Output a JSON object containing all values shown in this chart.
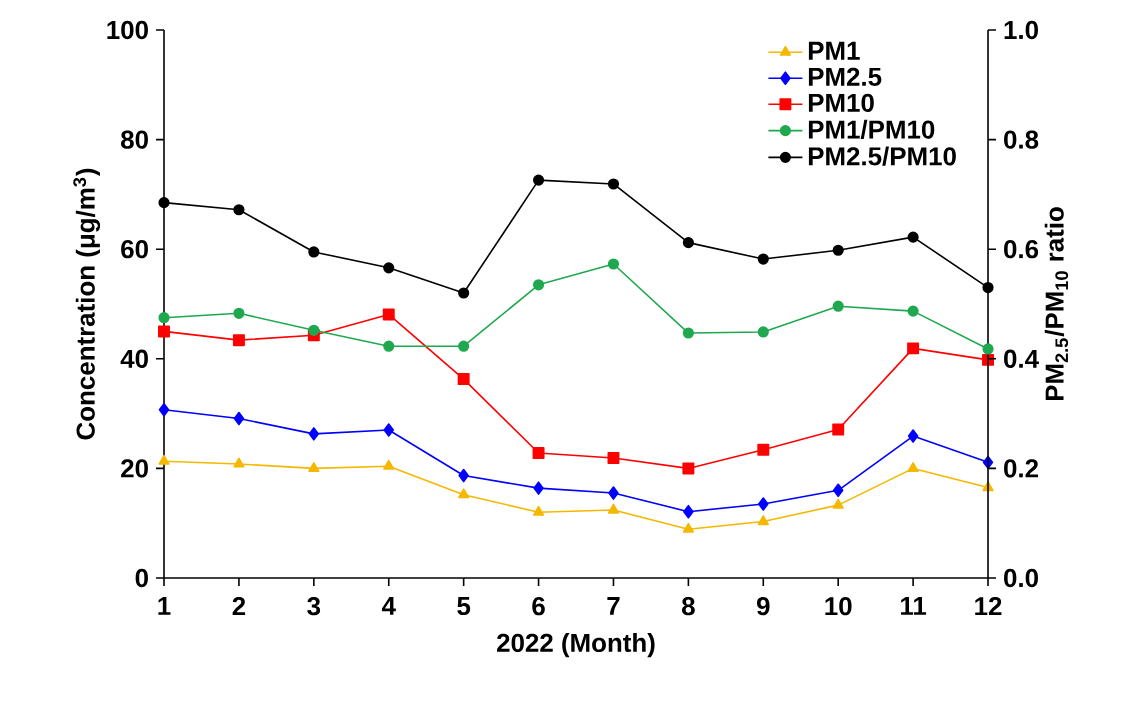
{
  "chart_data": {
    "type": "line",
    "xlabel": "2022 (Month)",
    "ylabel": "Concentration (μg/m$^{3}$)",
    "y2label": "PM$_{2.5}$/PM$_{10}$ ratio",
    "x": [
      1,
      2,
      3,
      4,
      5,
      6,
      7,
      8,
      9,
      10,
      11,
      12
    ],
    "xlim": [
      1,
      12
    ],
    "xticks": [
      1,
      2,
      3,
      4,
      5,
      6,
      7,
      8,
      9,
      10,
      11,
      12
    ],
    "ylim": [
      0,
      100
    ],
    "yticks": [
      0,
      20,
      40,
      60,
      80,
      100
    ],
    "y2lim": [
      0,
      1
    ],
    "y2ticks": [
      {
        "value": 0,
        "label": "0.0"
      },
      {
        "value": 0.2,
        "label": "0.2"
      },
      {
        "value": 0.4,
        "label": "0.4"
      },
      {
        "value": 0.6,
        "label": "0.6"
      },
      {
        "value": 0.8,
        "label": "0.8"
      },
      {
        "value": 1,
        "label": "1.0"
      }
    ],
    "grid": false,
    "legend": "top right",
    "line_style": "solid",
    "series": [
      {
        "name": "PM1",
        "color": "#f5b800",
        "marker": "triangle",
        "values": [
          21.3,
          20.8,
          20.0,
          20.4,
          15.2,
          12.0,
          12.4,
          8.9,
          10.3,
          13.3,
          20.0,
          16.5
        ]
      },
      {
        "name": "PM2.5",
        "color": "#0000ff",
        "marker": "diamond",
        "values": [
          30.7,
          29.1,
          26.3,
          27.0,
          18.7,
          16.4,
          15.5,
          12.1,
          13.5,
          16.0,
          25.9,
          21.1
        ]
      },
      {
        "name": "PM10",
        "color": "#ff0000",
        "marker": "square",
        "values": [
          45.0,
          43.4,
          44.3,
          48.1,
          36.3,
          22.8,
          21.9,
          20.0,
          23.4,
          27.1,
          41.9,
          39.8
        ]
      },
      {
        "name": "PM1/PM10",
        "color": "#1fa84f",
        "marker": "circle",
        "axis": "y2",
        "values": [
          0.475,
          0.483,
          0.452,
          0.423,
          0.423,
          0.535,
          0.573,
          0.447,
          0.449,
          0.496,
          0.487,
          0.418
        ]
      },
      {
        "name": "PM2.5/PM10",
        "color": "#000000",
        "marker": "circle",
        "axis": "y2",
        "values": [
          0.685,
          0.672,
          0.595,
          0.566,
          0.52,
          0.726,
          0.719,
          0.612,
          0.582,
          0.598,
          0.622,
          0.53
        ]
      }
    ]
  }
}
